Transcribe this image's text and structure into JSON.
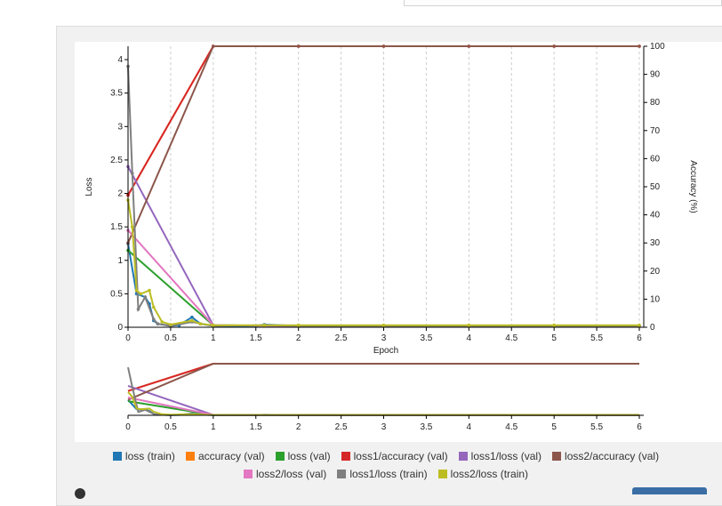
{
  "chart_data": {
    "type": "line",
    "xlabel": "Epoch",
    "ylabel_left": "Loss",
    "ylabel_right": "Accuracy (%)",
    "xlim": [
      0,
      6
    ],
    "ylim_left": [
      0,
      4.2
    ],
    "ylim_right": [
      0,
      100
    ],
    "x_ticks": [
      "0",
      "0.5",
      "1",
      "1.5",
      "2",
      "2.5",
      "3",
      "3.5",
      "4",
      "4.5",
      "5",
      "5.5",
      "6"
    ],
    "y_left_ticks": [
      "0",
      "0.5",
      "1",
      "1.5",
      "2",
      "2.5",
      "3",
      "3.5",
      "4"
    ],
    "y_right_ticks": [
      "0",
      "10",
      "20",
      "30",
      "40",
      "50",
      "60",
      "70",
      "80",
      "90",
      "100"
    ],
    "grid": "vertical dashed",
    "legend_position": "bottom",
    "series": [
      {
        "name": "loss (train)",
        "color": "#1f77b4",
        "axis": "left",
        "points": [
          [
            0,
            1.25
          ],
          [
            0.1,
            0.5
          ],
          [
            0.2,
            0.45
          ],
          [
            0.25,
            0.35
          ],
          [
            0.3,
            0.1
          ],
          [
            0.35,
            0.05
          ],
          [
            0.5,
            0.02
          ],
          [
            0.6,
            0.03
          ],
          [
            0.75,
            0.15
          ],
          [
            0.85,
            0.05
          ],
          [
            1,
            0.02
          ],
          [
            1.5,
            0.02
          ],
          [
            1.6,
            0.04
          ],
          [
            2,
            0.02
          ],
          [
            3,
            0.02
          ],
          [
            4,
            0.02
          ],
          [
            5,
            0.02
          ],
          [
            6,
            0.02
          ]
        ]
      },
      {
        "name": "accuracy (val)",
        "color": "#ff7f0e",
        "axis": "right",
        "points": [
          [
            0,
            47
          ],
          [
            1,
            100
          ],
          [
            2,
            100
          ],
          [
            3,
            100
          ],
          [
            4,
            100
          ],
          [
            5,
            100
          ],
          [
            6,
            100
          ]
        ]
      },
      {
        "name": "loss (val)",
        "color": "#2ca02c",
        "axis": "left",
        "points": [
          [
            0,
            1.15
          ],
          [
            1,
            0.03
          ],
          [
            2,
            0.02
          ],
          [
            3,
            0.02
          ],
          [
            4,
            0.02
          ],
          [
            5,
            0.02
          ],
          [
            6,
            0.02
          ]
        ]
      },
      {
        "name": "loss1/accuracy (val)",
        "color": "#d62728",
        "axis": "right",
        "points": [
          [
            0,
            47
          ],
          [
            1,
            100
          ],
          [
            2,
            100
          ],
          [
            3,
            100
          ],
          [
            4,
            100
          ],
          [
            5,
            100
          ],
          [
            6,
            100
          ]
        ]
      },
      {
        "name": "loss1/loss (val)",
        "color": "#9467bd",
        "axis": "left",
        "points": [
          [
            0,
            2.4
          ],
          [
            1,
            0.03
          ],
          [
            2,
            0.02
          ],
          [
            3,
            0.02
          ],
          [
            4,
            0.02
          ],
          [
            5,
            0.02
          ],
          [
            6,
            0.02
          ]
        ]
      },
      {
        "name": "loss2/accuracy (val)",
        "color": "#8c564b",
        "axis": "right",
        "points": [
          [
            0,
            30
          ],
          [
            1,
            100
          ],
          [
            2,
            100
          ],
          [
            3,
            100
          ],
          [
            4,
            100
          ],
          [
            5,
            100
          ],
          [
            6,
            100
          ]
        ]
      },
      {
        "name": "loss2/loss (val)",
        "color": "#e377c2",
        "axis": "left",
        "points": [
          [
            0,
            1.45
          ],
          [
            1,
            0.03
          ],
          [
            2,
            0.02
          ],
          [
            3,
            0.02
          ],
          [
            4,
            0.02
          ],
          [
            5,
            0.02
          ],
          [
            6,
            0.02
          ]
        ]
      },
      {
        "name": "loss1/loss (train)",
        "color": "#7f7f7f",
        "axis": "left",
        "points": [
          [
            0,
            3.9
          ],
          [
            0.05,
            2.3
          ],
          [
            0.12,
            0.27
          ],
          [
            0.2,
            0.45
          ],
          [
            0.3,
            0.12
          ],
          [
            0.35,
            0.05
          ],
          [
            0.5,
            0.02
          ],
          [
            0.75,
            0.08
          ],
          [
            1,
            0.02
          ],
          [
            1.6,
            0.03
          ],
          [
            2,
            0.02
          ],
          [
            3,
            0.02
          ],
          [
            4,
            0.02
          ],
          [
            5,
            0.02
          ],
          [
            6,
            0.02
          ]
        ]
      },
      {
        "name": "loss2/loss (train)",
        "color": "#bcbd22",
        "axis": "left",
        "points": [
          [
            0,
            1.9
          ],
          [
            0.05,
            1.5
          ],
          [
            0.1,
            0.55
          ],
          [
            0.15,
            0.5
          ],
          [
            0.25,
            0.55
          ],
          [
            0.3,
            0.3
          ],
          [
            0.4,
            0.08
          ],
          [
            0.5,
            0.04
          ],
          [
            0.75,
            0.1
          ],
          [
            0.85,
            0.05
          ],
          [
            1,
            0.03
          ],
          [
            1.6,
            0.03
          ],
          [
            2,
            0.03
          ],
          [
            3,
            0.03
          ],
          [
            4,
            0.03
          ],
          [
            5,
            0.03
          ],
          [
            6,
            0.03
          ]
        ]
      }
    ]
  }
}
